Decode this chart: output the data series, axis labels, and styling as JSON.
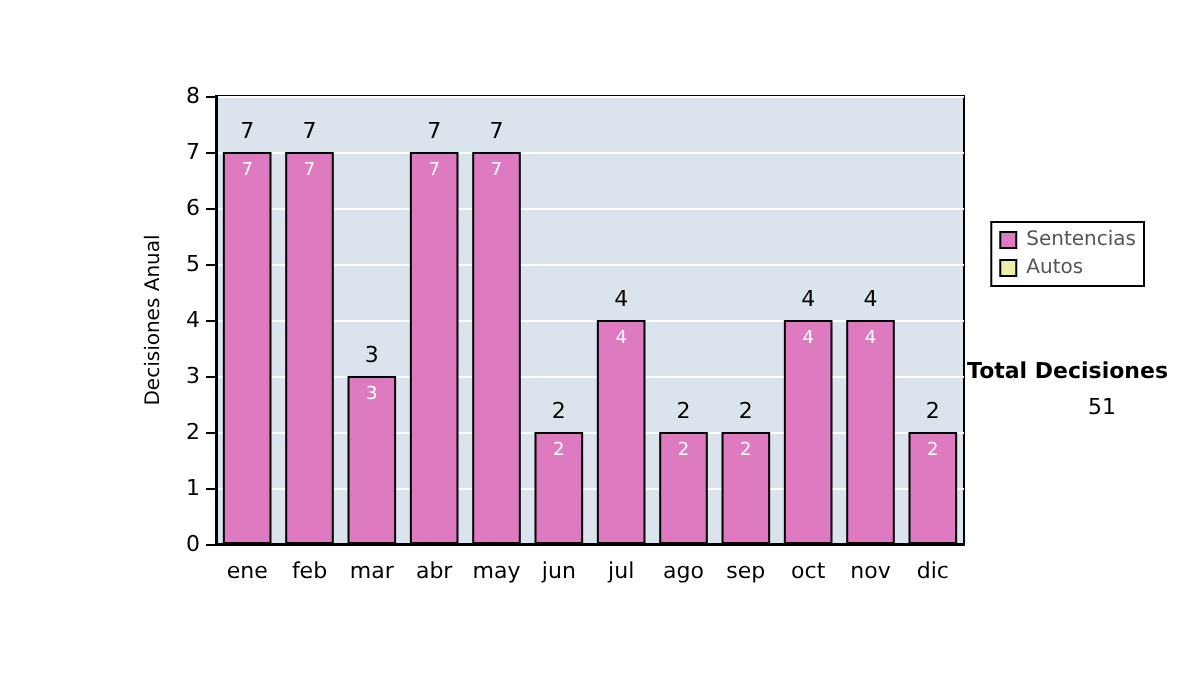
{
  "chart_data": {
    "type": "bar",
    "stacked": true,
    "ylabel": "Decisiones Anual",
    "categories": [
      "ene",
      "feb",
      "mar",
      "abr",
      "may",
      "jun",
      "jul",
      "ago",
      "sep",
      "oct",
      "nov",
      "dic"
    ],
    "series": [
      {
        "name": "Sentencias",
        "color": "#dd7ac0",
        "values": [
          7,
          7,
          3,
          7,
          7,
          2,
          4,
          2,
          2,
          4,
          4,
          2
        ],
        "value_labels": [
          "7",
          "7",
          "3",
          "7",
          "7",
          "2",
          "4",
          "2",
          "2",
          "4",
          "4",
          "2"
        ]
      },
      {
        "name": "Autos",
        "color": "#eef0a8",
        "values": [
          0,
          0,
          0,
          0,
          0,
          0,
          0,
          0,
          0,
          0,
          0,
          0
        ]
      }
    ],
    "totals": [
      "7",
      "7",
      "3",
      "7",
      "7",
      "2",
      "4",
      "2",
      "2",
      "4",
      "4",
      "2"
    ],
    "ylim": [
      0,
      8
    ],
    "yticks": [
      0,
      1,
      2,
      3,
      4,
      5,
      6,
      7,
      8
    ],
    "grid": "y",
    "legend": "right",
    "annotations": [
      "Total Decisiones",
      "51"
    ]
  }
}
